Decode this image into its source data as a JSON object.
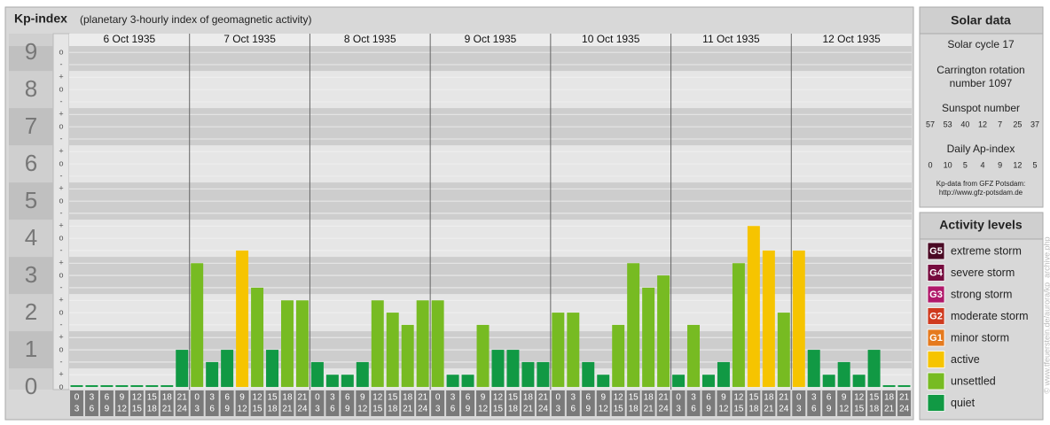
{
  "chart_data": {
    "type": "bar",
    "title": "Kp-index",
    "subtitle": "(planetary 3-hourly index of geomagnetic activity)",
    "hour_bins": [
      0,
      3,
      6,
      9,
      12,
      15,
      18,
      21,
      24
    ],
    "days": [
      {
        "date": "6 Oct 1935",
        "values": [
          0,
          0,
          0,
          0,
          0,
          0,
          0,
          1
        ]
      },
      {
        "date": "7 Oct 1935",
        "values": [
          3.33,
          0.67,
          1,
          3.67,
          2.67,
          1,
          2.33,
          2.33
        ]
      },
      {
        "date": "8 Oct 1935",
        "values": [
          0.67,
          0.33,
          0.33,
          0.67,
          2.33,
          2,
          1.67,
          2.33
        ]
      },
      {
        "date": "9 Oct 1935",
        "values": [
          2.33,
          0.33,
          0.33,
          1.67,
          1,
          1,
          0.67,
          0.67
        ]
      },
      {
        "date": "10 Oct 1935",
        "values": [
          2,
          2,
          0.67,
          0.33,
          1.67,
          3.33,
          2.67,
          3
        ]
      },
      {
        "date": "11 Oct 1935",
        "values": [
          0.33,
          1.67,
          0.33,
          0.67,
          3.33,
          4.33,
          3.67,
          2
        ]
      },
      {
        "date": "12 Oct 1935",
        "values": [
          3.67,
          1,
          0.33,
          0.67,
          0.33,
          1,
          0,
          0
        ]
      }
    ],
    "ylim": [
      -0.07,
      9.17
    ],
    "yticks": [
      0,
      1,
      2,
      3,
      4,
      5,
      6,
      7,
      8,
      9
    ],
    "minor_ticks": [
      {
        "value": 0,
        "label": "o"
      },
      {
        "value": 0.33,
        "label": "+"
      },
      {
        "value": 0.67,
        "label": "-"
      },
      {
        "value": 1,
        "label": "o"
      },
      {
        "value": 1.33,
        "label": "+"
      },
      {
        "value": 1.67,
        "label": "-"
      },
      {
        "value": 2,
        "label": "o"
      },
      {
        "value": 2.33,
        "label": "+"
      },
      {
        "value": 2.67,
        "label": "-"
      },
      {
        "value": 3,
        "label": "o"
      },
      {
        "value": 3.33,
        "label": "+"
      },
      {
        "value": 3.67,
        "label": "-"
      },
      {
        "value": 4,
        "label": "o"
      },
      {
        "value": 4.33,
        "label": "+"
      },
      {
        "value": 4.67,
        "label": "-"
      },
      {
        "value": 5,
        "label": "o"
      },
      {
        "value": 5.33,
        "label": "+"
      },
      {
        "value": 5.67,
        "label": "-"
      },
      {
        "value": 6,
        "label": "o"
      },
      {
        "value": 6.33,
        "label": "+"
      },
      {
        "value": 6.67,
        "label": "-"
      },
      {
        "value": 7,
        "label": "o"
      },
      {
        "value": 7.33,
        "label": "+"
      },
      {
        "value": 7.67,
        "label": "-"
      },
      {
        "value": 8,
        "label": "o"
      },
      {
        "value": 8.33,
        "label": "+"
      },
      {
        "value": 8.67,
        "label": "-"
      },
      {
        "value": 9,
        "label": "o"
      }
    ],
    "legend_title": "Activity levels",
    "levels": [
      {
        "code": "G5",
        "name": "extreme storm",
        "color": "#4a0a24",
        "min": 8.67
      },
      {
        "code": "G4",
        "name": "severe storm",
        "color": "#760c3e",
        "min": 7.67
      },
      {
        "code": "G3",
        "name": "strong storm",
        "color": "#b0186a",
        "min": 6.67
      },
      {
        "code": "G2",
        "name": "moderate storm",
        "color": "#cf3a1e",
        "min": 5.67
      },
      {
        "code": "G1",
        "name": "minor storm",
        "color": "#e57a1e",
        "min": 4.67
      },
      {
        "name": "active",
        "color": "#f6c400",
        "min": 3.67
      },
      {
        "name": "unsettled",
        "color": "#77bb22",
        "min": 1.67
      },
      {
        "name": "quiet",
        "color": "#119944",
        "min": 0
      }
    ],
    "solar_data": {
      "title": "Solar data",
      "solar_cycle": "Solar cycle 17",
      "carrington_1": "Carrington rotation",
      "carrington_2": "number 1097",
      "sunspot_label": "Sunspot number",
      "sunspot": [
        57,
        53,
        40,
        12,
        7,
        25,
        37
      ],
      "ap_label": "Daily Ap-index",
      "ap": [
        0,
        10,
        5,
        4,
        9,
        12,
        5
      ],
      "source": "Kp-data from GFZ Potsdam:",
      "source_url": "http://www.gfz-potsdam.de"
    },
    "watermark": "© www.tfeuerstein.de/aurora/kp_archive.php"
  }
}
